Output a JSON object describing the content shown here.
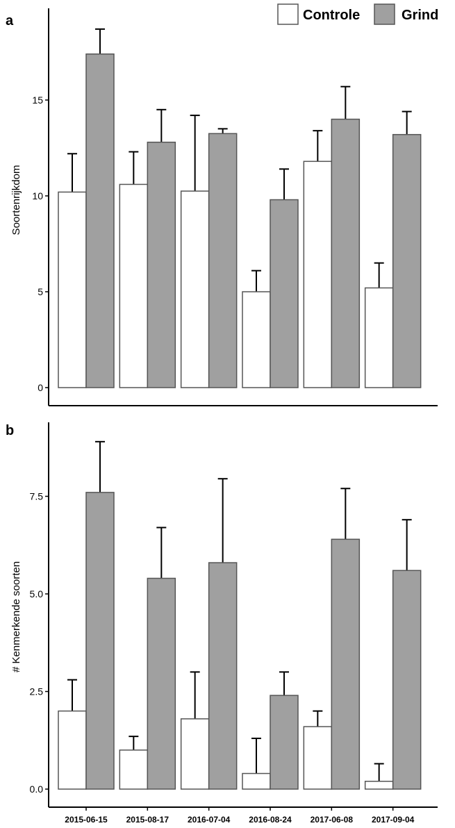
{
  "legend": {
    "position": "top-right",
    "items": [
      {
        "label": "Controle",
        "color": "#ffffff"
      },
      {
        "label": "Grind",
        "color": "#a0a0a0"
      }
    ]
  },
  "chart_data": [
    {
      "type": "bar",
      "panel_label": "a",
      "ylabel": "Soortenrijkdom",
      "ylim": [
        0,
        19
      ],
      "yticks": [
        0,
        5,
        10,
        15
      ],
      "ytick_labels": [
        "0",
        "5",
        "10",
        "15"
      ],
      "grid": false,
      "categories": [
        "2015-06-15",
        "2015-08-17",
        "2016-07-04",
        "2016-08-24",
        "2017-06-08",
        "2017-09-04"
      ],
      "series": [
        {
          "name": "Controle",
          "values": [
            10.2,
            10.6,
            10.25,
            5.0,
            11.8,
            5.2
          ],
          "error_upper": [
            12.2,
            12.3,
            14.2,
            6.1,
            13.4,
            6.5
          ]
        },
        {
          "name": "Grind",
          "values": [
            17.4,
            12.8,
            13.25,
            9.8,
            14.0,
            13.2
          ],
          "error_upper": [
            18.7,
            14.5,
            13.5,
            11.4,
            15.7,
            14.4
          ]
        }
      ]
    },
    {
      "type": "bar",
      "panel_label": "b",
      "ylabel": "# Kenmerkende soorten",
      "ylim": [
        0,
        9.5
      ],
      "yticks": [
        0,
        2.5,
        5,
        7.5
      ],
      "ytick_labels": [
        "0.0",
        "2.5",
        "5.0",
        "7.5"
      ],
      "grid": false,
      "categories": [
        "2015-06-15",
        "2015-08-17",
        "2016-07-04",
        "2016-08-24",
        "2017-06-08",
        "2017-09-04"
      ],
      "series": [
        {
          "name": "Controle",
          "values": [
            2.0,
            1.0,
            1.8,
            0.4,
            1.6,
            0.2
          ],
          "error_upper": [
            2.8,
            1.35,
            3.0,
            1.3,
            2.0,
            0.65
          ]
        },
        {
          "name": "Grind",
          "values": [
            7.6,
            5.4,
            5.8,
            2.4,
            6.4,
            5.6
          ],
          "error_upper": [
            8.9,
            6.7,
            7.95,
            3.0,
            7.7,
            6.9
          ]
        }
      ]
    }
  ]
}
